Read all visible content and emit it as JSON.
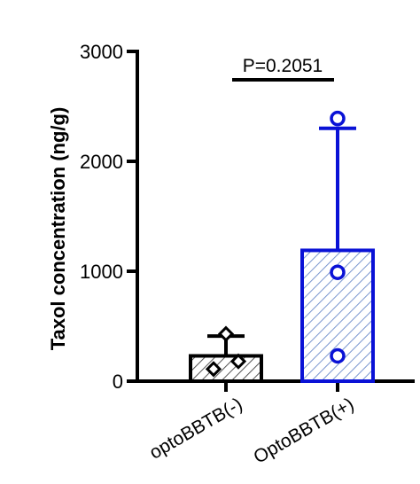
{
  "chart_data": {
    "type": "bar",
    "title": "",
    "xlabel": "",
    "ylabel": "Taxol concentration (ng/g)",
    "ylim": [
      0,
      3000
    ],
    "yticks": [
      "0",
      "1000",
      "2000",
      "3000"
    ],
    "ytick_values": [
      0,
      1000,
      2000,
      3000
    ],
    "categories": [
      "optoBBTB(-)",
      "OptoBBTB(+)"
    ],
    "values": [
      230,
      1190
    ],
    "error_upper": [
      410,
      2300
    ],
    "points": [
      [
        110,
        180,
        430
      ],
      [
        230,
        990,
        2390
      ]
    ],
    "marker_shapes": [
      "diamond",
      "circle"
    ],
    "colors": [
      "#000000",
      "#0a12d6"
    ],
    "bar_fill": "hatched",
    "grid": false,
    "annotation": "P=0.2051"
  }
}
